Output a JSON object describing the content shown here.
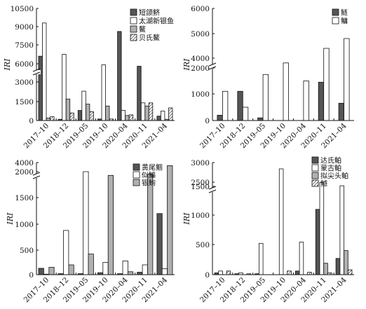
{
  "colors": {
    "dark": "#555555",
    "white": "#ffffff",
    "gray": "#b0b0b0",
    "stroke": "#111111"
  },
  "chart_data": [
    {
      "type": "bar",
      "ylabel": "IRI",
      "categories": [
        "2017–10",
        "2018–12",
        "2019–05",
        "2019–10",
        "2020–04",
        "2020–11",
        "2021–04"
      ],
      "yticks": [
        "0",
        "1500",
        "3000",
        "6000",
        "7500",
        "9000",
        "10500"
      ],
      "axis_break": true,
      "ylim": [
        0,
        10500
      ],
      "legend_position": "top-right",
      "series": [
        {
          "name": "短颌鲚",
          "fill": "dark",
          "values": [
            6600,
            100,
            800,
            120,
            8600,
            5300,
            350
          ]
        },
        {
          "name": "太湖新银鱼",
          "fill": "white",
          "values": [
            9300,
            6750,
            2300,
            5700,
            800,
            1400,
            750
          ]
        },
        {
          "name": "鰲",
          "fill": "gray",
          "values": [
            200,
            1700,
            1300,
            1150,
            400,
            1150,
            100
          ]
        },
        {
          "name": "贝氏鰲",
          "fill": "hatch",
          "values": [
            300,
            600,
            700,
            120,
            450,
            1400,
            1000
          ]
        }
      ]
    },
    {
      "type": "bar",
      "ylabel": "IRI",
      "categories": [
        "2017–10",
        "2018–12",
        "2019–05",
        "2019–10",
        "2020–04",
        "2020–11",
        "2021–04"
      ],
      "yticks": [
        "0",
        "1000",
        "2000",
        "4000",
        "5000",
        "6000"
      ],
      "axis_break": true,
      "ylim": [
        0,
        6000
      ],
      "legend_position": "top-right",
      "series": [
        {
          "name": "鲢",
          "fill": "dark",
          "values": [
            200,
            1100,
            100,
            0,
            0,
            1450,
            650
          ]
        },
        {
          "name": "鳙",
          "fill": "white",
          "values": [
            1100,
            500,
            1750,
            2300,
            1500,
            4400,
            4800
          ]
        }
      ]
    },
    {
      "type": "bar",
      "ylabel": "IRI",
      "categories": [
        "2017–10",
        "2018–12",
        "2019–05",
        "2019–10",
        "2020–04",
        "2020–11",
        "2021–04"
      ],
      "yticks": [
        "0",
        "500",
        "1000",
        "1500",
        "2000",
        "4000"
      ],
      "axis_break": true,
      "ylim": [
        0,
        4000
      ],
      "legend_position": "top-right",
      "series": [
        {
          "name": "黄尾鲴",
          "fill": "dark",
          "values": [
            130,
            20,
            20,
            40,
            20,
            50,
            1200
          ]
        },
        {
          "name": "似鳊",
          "fill": "white",
          "values": [
            10,
            880,
            2000,
            250,
            280,
            200,
            120
          ]
        },
        {
          "name": "银鮈",
          "fill": "gray",
          "values": [
            150,
            200,
            420,
            2150,
            60,
            2100,
            3600
          ]
        }
      ]
    },
    {
      "type": "bar",
      "ylabel": "IRI",
      "categories": [
        "2017–10",
        "2018–12",
        "2019–05",
        "2019–10",
        "2020–04",
        "2020–11",
        "2021–04"
      ],
      "yticks": [
        "0",
        "500",
        "1000",
        "1500",
        "2500",
        "3000"
      ],
      "axis_break": true,
      "ylim": [
        0,
        3000
      ],
      "legend_position": "top-right",
      "series": [
        {
          "name": "达氏鲌",
          "fill": "dark",
          "values": [
            30,
            15,
            15,
            0,
            60,
            1100,
            270
          ]
        },
        {
          "name": "蒙古鲌",
          "fill": "white",
          "values": [
            60,
            30,
            520,
            2840,
            540,
            2450,
            1650
          ]
        },
        {
          "name": "拟尖头鲌",
          "fill": "gray",
          "values": [
            0,
            0,
            0,
            0,
            0,
            190,
            400
          ]
        },
        {
          "name": "鳡",
          "fill": "hatch",
          "values": [
            60,
            15,
            0,
            60,
            40,
            30,
            80
          ]
        }
      ]
    }
  ]
}
